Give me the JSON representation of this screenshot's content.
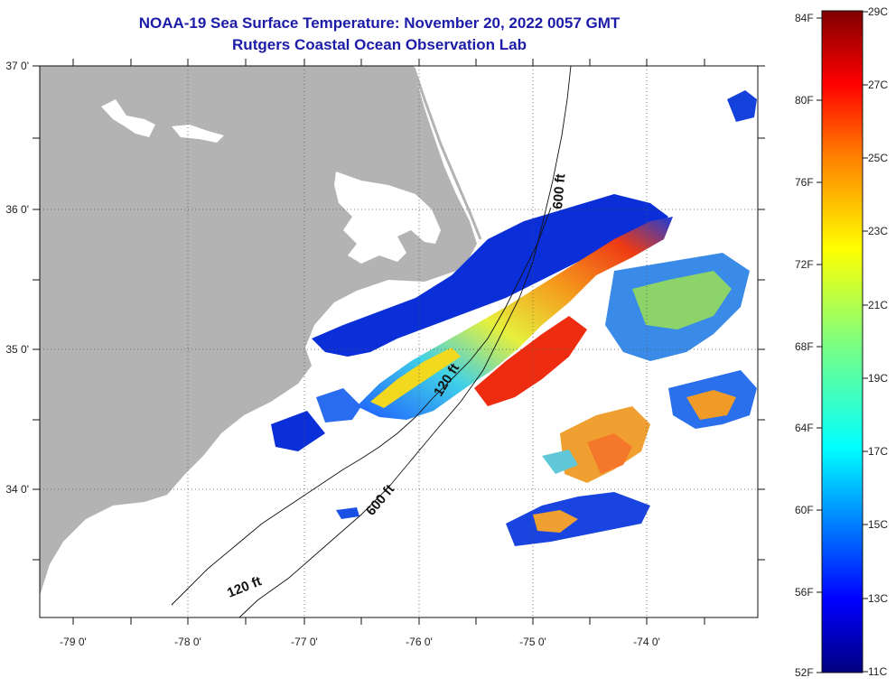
{
  "title": "NOAA-19 Sea Surface Temperature:  November 20, 2022 0057 GMT",
  "subtitle": "Rutgers Coastal Ocean Observation Lab",
  "map": {
    "lon_labels": [
      "-79 0'",
      "-78 0'",
      "-77 0'",
      "-76 0'",
      "-75 0'",
      "-74 0'"
    ],
    "lat_labels": [
      "37 0'",
      "36 0'",
      "35 0'",
      "34 0'"
    ],
    "contour_labels": [
      "600 ft",
      "120 ft",
      "600 ft",
      "120 ft"
    ],
    "colors": {
      "land": "#b3b3b3",
      "water_nodata": "#ffffff",
      "grid": "#555555"
    }
  },
  "colorbar": {
    "fahrenheit": [
      "84F",
      "80F",
      "76F",
      "72F",
      "68F",
      "64F",
      "60F",
      "56F",
      "52F"
    ],
    "celsius": [
      "29C",
      "27C",
      "25C",
      "23C",
      "21C",
      "19C",
      "17C",
      "15C",
      "13C",
      "11C"
    ]
  }
}
